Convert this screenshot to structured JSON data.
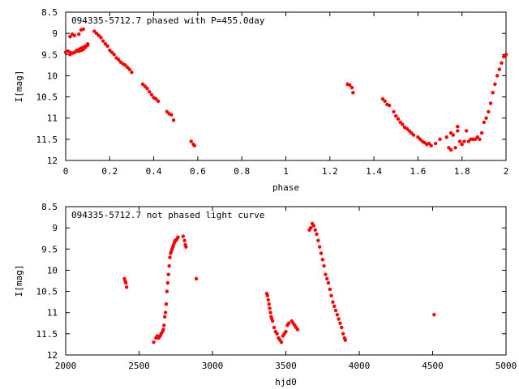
{
  "chart_data": [
    {
      "type": "scatter",
      "title": "094335-5712.7 phased with P=455.0day",
      "xlabel": "phase",
      "ylabel": "I[mag]",
      "xlim": [
        0,
        2
      ],
      "ylim": [
        8.5,
        12
      ],
      "y_inverted": true,
      "xticks": [
        0,
        0.2,
        0.4,
        0.6,
        0.8,
        1,
        1.2,
        1.4,
        1.6,
        1.8,
        2
      ],
      "xtick_labels": [
        "0",
        "0.2",
        "0.4",
        "0.6",
        "0.8",
        "1",
        "1.2",
        "1.4",
        "1.6",
        "1.8",
        "2"
      ],
      "yticks": [
        8.5,
        9,
        9.5,
        10,
        10.5,
        11,
        11.5,
        12
      ],
      "ytick_labels": [
        "8.5",
        "9",
        "9.5",
        "10",
        "10.5",
        "11",
        "11.5",
        "12"
      ],
      "grid": false,
      "color": "#ff0000",
      "series": [
        {
          "x": [
            0.0,
            0.01,
            0.02,
            0.02,
            0.03,
            0.04,
            0.05,
            0.05,
            0.06,
            0.06,
            0.07,
            0.07,
            0.08,
            0.08,
            0.09,
            0.09,
            0.1,
            0.1,
            0.02,
            0.03,
            0.04,
            0.06,
            0.07,
            0.08,
            0.13,
            0.14,
            0.15,
            0.16,
            0.17,
            0.18,
            0.19,
            0.2,
            0.21,
            0.22,
            0.23,
            0.24,
            0.25,
            0.26,
            0.27,
            0.28,
            0.29,
            0.3,
            0.35,
            0.36,
            0.37,
            0.38,
            0.39,
            0.4,
            0.41,
            0.42,
            0.46,
            0.47,
            0.48,
            0.49,
            0.57,
            0.58,
            0.585,
            1.28,
            1.29,
            1.3,
            1.305,
            1.44,
            1.45,
            1.46,
            1.47,
            1.49,
            1.5,
            1.51,
            1.52,
            1.53,
            1.54,
            1.55,
            1.56,
            1.57,
            1.58,
            1.6,
            1.61,
            1.62,
            1.63,
            1.64,
            1.65,
            1.66,
            1.68,
            1.7,
            1.73,
            1.74,
            1.75,
            1.75,
            1.76,
            1.77,
            1.78,
            1.78,
            1.79,
            1.8,
            1.81,
            1.82,
            1.83,
            1.84,
            1.85,
            1.86,
            1.87,
            1.88,
            1.89,
            1.9,
            1.91,
            1.92,
            1.93,
            1.94,
            1.95,
            1.96,
            1.97,
            1.98,
            1.99,
            2.0
          ],
          "y": [
            9.45,
            9.42,
            9.5,
            9.45,
            9.47,
            9.45,
            9.42,
            9.4,
            9.42,
            9.38,
            9.4,
            9.35,
            9.38,
            9.33,
            9.33,
            9.3,
            9.28,
            9.25,
            9.08,
            9.02,
            9.05,
            9.02,
            8.92,
            8.9,
            8.95,
            9.0,
            9.05,
            9.1,
            9.18,
            9.25,
            9.3,
            9.4,
            9.45,
            9.5,
            9.58,
            9.62,
            9.68,
            9.72,
            9.75,
            9.8,
            9.85,
            9.92,
            10.2,
            10.25,
            10.3,
            10.38,
            10.45,
            10.52,
            10.55,
            10.6,
            10.85,
            10.9,
            10.92,
            11.05,
            11.55,
            11.62,
            11.65,
            10.2,
            10.22,
            10.28,
            10.4,
            10.55,
            10.6,
            10.68,
            10.7,
            10.85,
            10.95,
            11.02,
            11.1,
            11.15,
            11.22,
            11.25,
            11.3,
            11.35,
            11.4,
            11.45,
            11.5,
            11.55,
            11.58,
            11.62,
            11.6,
            11.65,
            11.6,
            11.5,
            11.45,
            11.7,
            11.75,
            11.35,
            11.4,
            11.7,
            11.3,
            11.2,
            11.55,
            11.62,
            11.55,
            11.3,
            11.55,
            11.5,
            11.5,
            11.5,
            11.45,
            11.5,
            11.35,
            11.1,
            11.0,
            10.85,
            10.65,
            10.4,
            10.2,
            10.0,
            9.85,
            9.7,
            9.55,
            9.5
          ]
        }
      ]
    },
    {
      "type": "scatter",
      "title": "094335-5712.7 not phased light curve",
      "xlabel": "hjd0",
      "ylabel": "I[mag]",
      "xlim": [
        2000,
        5000
      ],
      "ylim": [
        8.5,
        12
      ],
      "y_inverted": true,
      "xticks": [
        2000,
        2500,
        3000,
        3500,
        4000,
        4500,
        5000
      ],
      "xtick_labels": [
        "2000",
        "2500",
        "3000",
        "3500",
        "4000",
        "4500",
        "5000"
      ],
      "yticks": [
        8.5,
        9,
        9.5,
        10,
        10.5,
        11,
        11.5,
        12
      ],
      "ytick_labels": [
        "8.5",
        "9",
        "9.5",
        "10",
        "10.5",
        "11",
        "11.5",
        "12"
      ],
      "grid": false,
      "color": "#ff0000",
      "series": [
        {
          "x": [
            2400,
            2405,
            2410,
            2415,
            2600,
            2615,
            2625,
            2635,
            2645,
            2650,
            2660,
            2665,
            2670,
            2675,
            2680,
            2685,
            2690,
            2695,
            2700,
            2705,
            2710,
            2715,
            2720,
            2725,
            2730,
            2735,
            2740,
            2745,
            2750,
            2755,
            2760,
            2765,
            2800,
            2810,
            2815,
            2820,
            2890,
            3370,
            3375,
            3380,
            3385,
            3390,
            3395,
            3400,
            3405,
            3410,
            3420,
            3430,
            3440,
            3450,
            3460,
            3470,
            3480,
            3490,
            3500,
            3510,
            3520,
            3540,
            3550,
            3560,
            3570,
            3580,
            3660,
            3670,
            3680,
            3690,
            3700,
            3710,
            3720,
            3730,
            3740,
            3750,
            3760,
            3770,
            3780,
            3790,
            3800,
            3810,
            3820,
            3830,
            3840,
            3850,
            3860,
            3870,
            3880,
            3890,
            3900,
            3905,
            4510
          ],
          "y": [
            10.2,
            10.25,
            10.3,
            10.4,
            11.7,
            11.6,
            11.55,
            11.6,
            11.55,
            11.5,
            11.45,
            11.4,
            11.3,
            11.1,
            11.0,
            10.8,
            10.5,
            10.3,
            10.1,
            9.9,
            9.7,
            9.6,
            9.55,
            9.5,
            9.45,
            9.4,
            9.35,
            9.3,
            9.3,
            9.28,
            9.25,
            9.22,
            9.2,
            9.3,
            9.4,
            9.45,
            10.2,
            10.55,
            10.6,
            10.7,
            10.8,
            10.9,
            11.0,
            11.1,
            11.15,
            11.2,
            11.35,
            11.45,
            11.5,
            11.6,
            11.65,
            11.7,
            11.55,
            11.5,
            11.45,
            11.3,
            11.25,
            11.2,
            11.25,
            11.3,
            11.35,
            11.4,
            9.05,
            9.0,
            8.9,
            8.95,
            9.05,
            9.15,
            9.3,
            9.45,
            9.6,
            9.75,
            9.9,
            10.1,
            10.2,
            10.3,
            10.45,
            10.6,
            10.75,
            10.85,
            10.95,
            11.05,
            11.15,
            11.25,
            11.35,
            11.5,
            11.6,
            11.65,
            11.05
          ]
        }
      ]
    }
  ]
}
